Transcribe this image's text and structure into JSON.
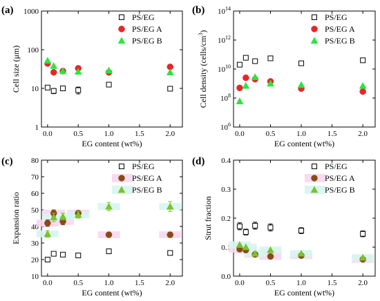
{
  "chart_data": [
    {
      "panel": "(a)",
      "type": "scatter",
      "scale": "log",
      "xlabel": "EG content (wt%)",
      "ylabel": "Cell size (μm)",
      "xlim": [
        -0.1,
        2.2
      ],
      "ylim": [
        1,
        1000
      ],
      "x_ticks": [
        0.0,
        0.5,
        1.0,
        1.5,
        2.0
      ],
      "x_tick_labels": [
        "0.0",
        "0.5",
        "1.0",
        "1.5",
        "2.0"
      ],
      "y_ticks": [
        1,
        10,
        100,
        1000
      ],
      "y_tick_labels": [
        "1",
        "10",
        "100",
        "1000"
      ],
      "legend_position": "top-right",
      "highlight": false,
      "series": [
        {
          "name": "PS/EG",
          "marker": "open-square",
          "color": "#000000",
          "x": [
            0.0,
            0.1,
            0.25,
            0.5,
            1.0,
            2.0
          ],
          "y": [
            10.5,
            8.6,
            10.0,
            9.0,
            12.5,
            9.8
          ],
          "err": [
            1.0,
            1.3,
            0.9,
            1.8,
            1.0,
            0.8
          ]
        },
        {
          "name": "PS/EG A",
          "marker": "circle",
          "color": "#e8262a",
          "x": [
            0.0,
            0.1,
            0.25,
            0.5,
            1.0,
            2.0
          ],
          "y": [
            44,
            26,
            28,
            33,
            26,
            36
          ],
          "err": [
            0,
            0,
            0,
            0,
            0,
            0
          ]
        },
        {
          "name": "PS/EG B",
          "marker": "triangle",
          "color": "#27e83a",
          "x": [
            0.0,
            0.1,
            0.25,
            0.5,
            1.0,
            2.0
          ],
          "y": [
            52,
            38,
            28,
            27,
            29,
            26
          ],
          "err": [
            0,
            0,
            0,
            0,
            0,
            0
          ]
        }
      ]
    },
    {
      "panel": "(b)",
      "type": "scatter",
      "scale": "log",
      "xlabel": "EG content (wt%)",
      "ylabel": "Cell density (cells/cm³)",
      "ylabel_parts": [
        "Cell density (cells/cm",
        "3",
        ")"
      ],
      "xlim": [
        -0.1,
        2.2
      ],
      "ylim": [
        1000000,
        100000000000000
      ],
      "x_ticks": [
        0.0,
        0.5,
        1.0,
        1.5,
        2.0
      ],
      "x_tick_labels": [
        "0.0",
        "0.5",
        "1.0",
        "1.5",
        "2.0"
      ],
      "y_ticks": [
        1000000,
        100000000,
        10000000000,
        1000000000000,
        100000000000000
      ],
      "y_tick_labels": [
        {
          "base": "10",
          "exp": "6"
        },
        {
          "base": "10",
          "exp": "8"
        },
        {
          "base": "10",
          "exp": "10"
        },
        {
          "base": "10",
          "exp": "12"
        },
        {
          "base": "10",
          "exp": "14"
        }
      ],
      "legend_position": "top-right",
      "highlight": false,
      "series": [
        {
          "name": "PS/EG",
          "marker": "open-square",
          "color": "#000000",
          "x": [
            0.0,
            0.1,
            0.25,
            0.5,
            1.0,
            2.0
          ],
          "y": [
            20000000000,
            60000000000,
            35000000000,
            55000000000,
            25000000000,
            40000000000
          ],
          "err": [
            0,
            0,
            0,
            0,
            0,
            0
          ]
        },
        {
          "name": "PS/EG A",
          "marker": "circle",
          "color": "#e8262a",
          "x": [
            0.0,
            0.1,
            0.25,
            0.5,
            1.0,
            2.0
          ],
          "y": [
            500000000,
            2500000000,
            2000000000,
            1400000000,
            450000000,
            280000000
          ],
          "err": [
            0,
            0,
            0,
            0,
            0,
            0
          ]
        },
        {
          "name": "PS/EG B",
          "marker": "triangle",
          "color": "#27e83a",
          "x": [
            0.0,
            0.1,
            0.25,
            0.5,
            1.0,
            2.0
          ],
          "y": [
            60000000,
            700000000,
            2800000000,
            1000000000,
            800000000,
            700000000
          ],
          "err": [
            0,
            0,
            0,
            0,
            0,
            0
          ]
        }
      ]
    },
    {
      "panel": "(c)",
      "type": "scatter",
      "scale": "linear",
      "xlabel": "EG content (wt%)",
      "ylabel": "Expansion ratio",
      "xlim": [
        -0.1,
        2.2
      ],
      "ylim": [
        10,
        80
      ],
      "x_ticks": [
        0.0,
        0.5,
        1.0,
        1.5,
        2.0
      ],
      "x_tick_labels": [
        "0.0",
        "0.5",
        "1.0",
        "1.5",
        "2.0"
      ],
      "y_ticks": [
        10,
        20,
        30,
        40,
        50,
        60,
        70,
        80
      ],
      "y_tick_labels": [
        "10",
        "20",
        "30",
        "40",
        "50",
        "60",
        "70",
        "80"
      ],
      "legend_position": "top-right",
      "highlight": true,
      "highlight_colors": {
        "PS/EG A": "#f8d7ef",
        "PS/EG B": "#d6f5ef"
      },
      "series": [
        {
          "name": "PS/EG",
          "marker": "open-square",
          "color": "#000000",
          "x": [
            0.0,
            0.1,
            0.25,
            0.5,
            1.0,
            2.0
          ],
          "y": [
            20,
            23.5,
            23,
            22.5,
            25,
            24
          ],
          "err": [
            0,
            0,
            0,
            0,
            0,
            0
          ]
        },
        {
          "name": "PS/EG A",
          "marker": "circle",
          "color": "#8a4a14",
          "x": [
            0.0,
            0.1,
            0.25,
            0.5,
            1.0,
            2.0
          ],
          "y": [
            42,
            48,
            43,
            48,
            35,
            35
          ],
          "err": [
            2.0,
            2.0,
            2.0,
            1.5,
            0,
            1.5
          ]
        },
        {
          "name": "PS/EG B",
          "marker": "triangle",
          "color": "#7cc22a",
          "x": [
            0.0,
            0.1,
            0.25,
            0.5,
            1.0,
            2.0
          ],
          "y": [
            35.5,
            45.5,
            46,
            47,
            52,
            52
          ],
          "err": [
            2.0,
            2.5,
            2.0,
            2.0,
            2.5,
            3.0
          ]
        }
      ]
    },
    {
      "panel": "(d)",
      "type": "scatter",
      "scale": "linear",
      "xlabel": "EG content (wt%)",
      "ylabel": "Strut fraction",
      "xlim": [
        -0.1,
        2.2
      ],
      "ylim": [
        0.0,
        0.4
      ],
      "x_ticks": [
        0.0,
        0.5,
        1.0,
        1.5,
        2.0
      ],
      "x_tick_labels": [
        "0.0",
        "0.5",
        "1.0",
        "1.5",
        "2.0"
      ],
      "y_ticks": [
        0.0,
        0.1,
        0.2,
        0.3,
        0.4
      ],
      "y_tick_labels": [
        "0.0",
        "0.1",
        "0.2",
        "0.3",
        "0.4"
      ],
      "legend_position": "top-right",
      "highlight": true,
      "highlight_colors": {
        "PS/EG A": "#f8d7ef",
        "PS/EG B": "#d6f5ef"
      },
      "series": [
        {
          "name": "PS/EG",
          "marker": "open-square",
          "color": "#000000",
          "x": [
            0.0,
            0.1,
            0.25,
            0.5,
            1.0,
            2.0
          ],
          "y": [
            0.172,
            0.152,
            0.174,
            0.168,
            0.157,
            0.146
          ],
          "err": [
            0.012,
            0.01,
            0.012,
            0.012,
            0.01,
            0.01
          ]
        },
        {
          "name": "PS/EG A",
          "marker": "circle",
          "color": "#8a4a14",
          "x": [
            0.0,
            0.1,
            0.25,
            0.5,
            1.0,
            2.0
          ],
          "y": [
            0.093,
            0.09,
            0.075,
            0.068,
            0.071,
            0.058
          ],
          "err": [
            0,
            0,
            0,
            0,
            0,
            0
          ]
        },
        {
          "name": "PS/EG B",
          "marker": "triangle",
          "color": "#7cc22a",
          "x": [
            0.0,
            0.1,
            0.25,
            0.5,
            1.0,
            2.0
          ],
          "y": [
            0.108,
            0.1,
            0.078,
            0.09,
            0.078,
            0.064
          ],
          "err": [
            0,
            0,
            0,
            0,
            0,
            0
          ]
        }
      ]
    }
  ]
}
